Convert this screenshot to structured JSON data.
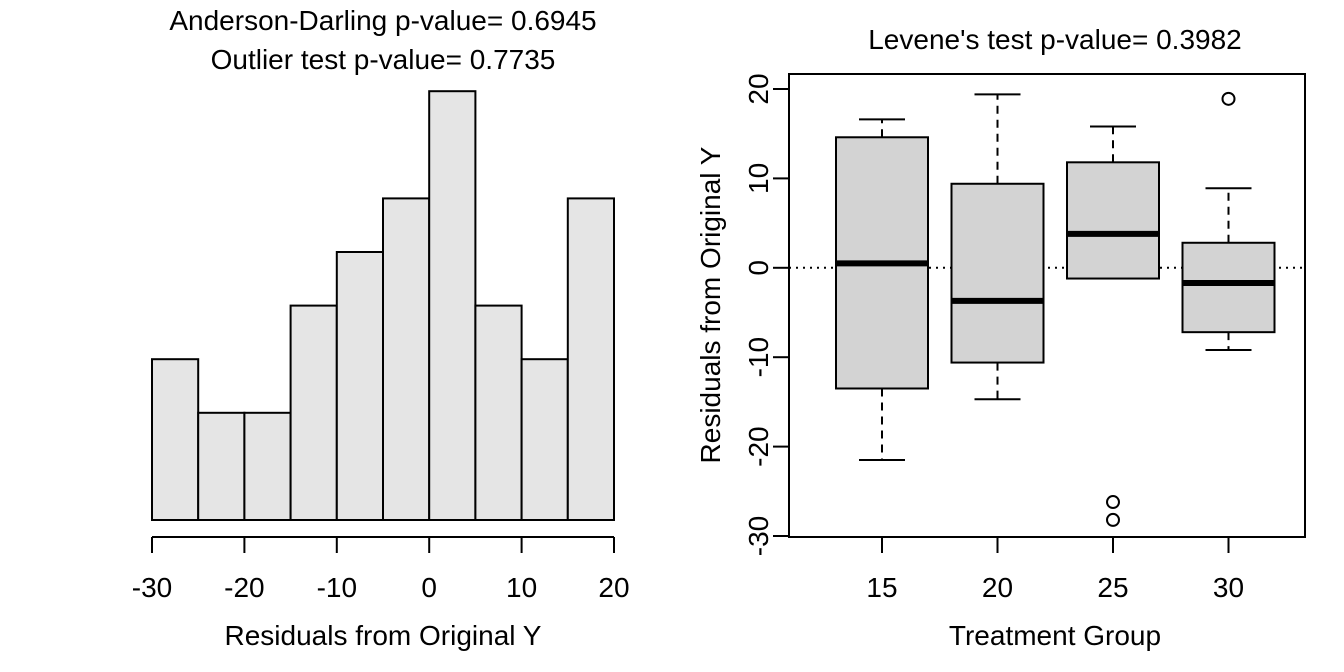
{
  "chart_data": [
    {
      "type": "histogram",
      "title_lines": [
        "Anderson-Darling p-value= 0.6945",
        "Outlier test p-value= 0.7735"
      ],
      "xlabel": "Residuals from Original Y",
      "ylabel": "",
      "xlim": [
        -30,
        20
      ],
      "x_ticks": [
        -30,
        -20,
        -10,
        0,
        10,
        20
      ],
      "y_axis_shown": false,
      "bins": [
        {
          "x0": -30,
          "x1": -25,
          "count": 3
        },
        {
          "x0": -25,
          "x1": -20,
          "count": 2
        },
        {
          "x0": -20,
          "x1": -15,
          "count": 2
        },
        {
          "x0": -15,
          "x1": -10,
          "count": 4
        },
        {
          "x0": -10,
          "x1": -5,
          "count": 5
        },
        {
          "x0": -5,
          "x1": 0,
          "count": 6
        },
        {
          "x0": 0,
          "x1": 5,
          "count": 8
        },
        {
          "x0": 5,
          "x1": 10,
          "count": 4
        },
        {
          "x0": 10,
          "x1": 15,
          "count": 3
        },
        {
          "x0": 15,
          "x1": 20,
          "count": 6
        }
      ],
      "bar_fill": "#e5e5e5",
      "grid": false
    },
    {
      "type": "boxplot",
      "title": "Levene's test p-value= 0.3982",
      "xlabel": "Treatment Group",
      "ylabel": "Residuals from Original Y",
      "ylim": [
        -30,
        20
      ],
      "y_ticks": [
        -30,
        -20,
        -10,
        0,
        10,
        20
      ],
      "reference_line": {
        "y": 0,
        "style": "dotted"
      },
      "box_fill": "#d3d3d3",
      "grid": false,
      "groups": [
        {
          "label": "15",
          "whisker_low": -21.5,
          "q1": -13.5,
          "median": 0.5,
          "q3": 14.6,
          "whisker_high": 16.6,
          "outliers": []
        },
        {
          "label": "20",
          "whisker_low": -14.7,
          "q1": -10.6,
          "median": -3.7,
          "q3": 9.4,
          "whisker_high": 19.4,
          "outliers": []
        },
        {
          "label": "25",
          "whisker_low": -1.2,
          "q1": -1.2,
          "median": 3.8,
          "q3": 11.8,
          "whisker_high": 15.8,
          "outliers": [
            -26.2,
            -28.2
          ]
        },
        {
          "label": "30",
          "whisker_low": -9.2,
          "q1": -7.2,
          "median": -1.7,
          "q3": 2.8,
          "whisker_high": 8.9,
          "outliers": [
            18.9
          ]
        }
      ]
    }
  ]
}
